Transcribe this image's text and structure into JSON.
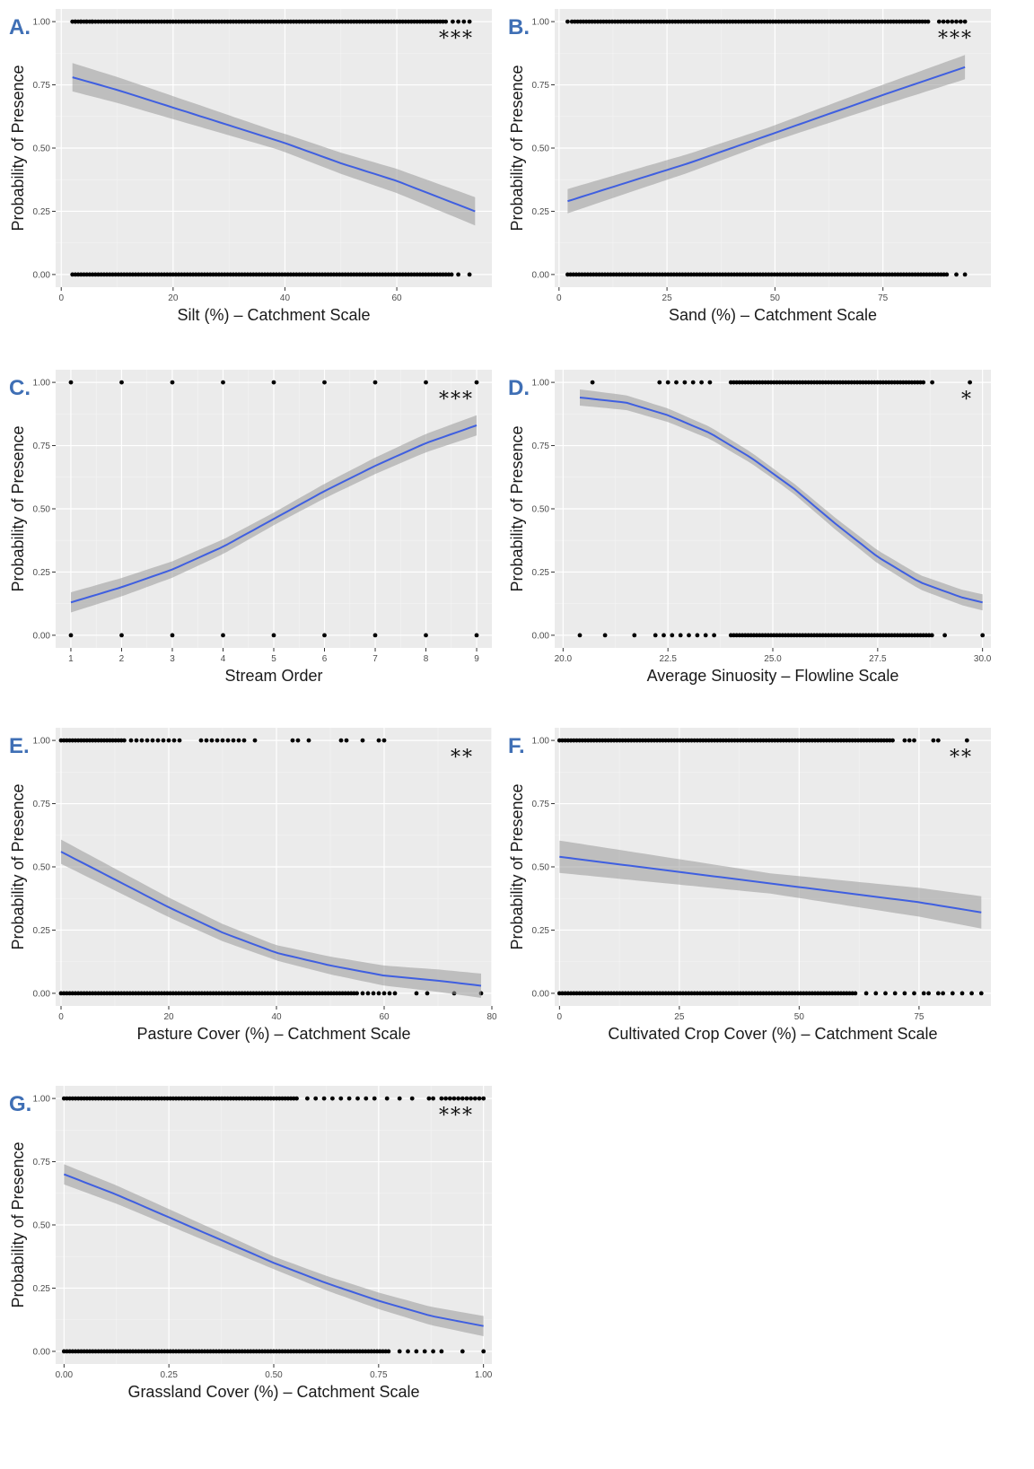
{
  "figure": {
    "y_label": "Probability of Presence",
    "y_ticks": [
      "0.00",
      "0.25",
      "0.50",
      "0.75",
      "1.00"
    ]
  },
  "chart_data": [
    {
      "id": "A",
      "panel_label": "A.",
      "type": "line",
      "xlabel": "Silt (%) – Catchment Scale",
      "ylabel": "Probability of Presence",
      "xlim": [
        -1,
        77
      ],
      "ylim": [
        -0.05,
        1.05
      ],
      "x_ticks": [
        0,
        20,
        40,
        60
      ],
      "x_tick_labels": [
        "0",
        "20",
        "40",
        "60"
      ],
      "significance": "***",
      "fit": {
        "x": [
          2,
          10,
          20,
          30,
          40,
          50,
          60,
          74
        ],
        "y": [
          0.78,
          0.73,
          0.66,
          0.59,
          0.52,
          0.44,
          0.37,
          0.25
        ]
      },
      "ci_halfwidth": 0.035,
      "obs_present": {
        "dense": [
          2,
          69
        ],
        "extra": [
          2.5,
          3.5,
          4.5,
          5.5,
          70,
          71,
          72,
          73
        ]
      },
      "obs_absent": {
        "dense": [
          2,
          70
        ],
        "extra": [
          71,
          73
        ]
      }
    },
    {
      "id": "B",
      "panel_label": "B.",
      "type": "line",
      "xlabel": "Sand (%) – Catchment Scale",
      "ylabel": "Probability of Presence",
      "xlim": [
        -1,
        100
      ],
      "ylim": [
        -0.05,
        1.05
      ],
      "x_ticks": [
        0,
        25,
        50,
        75
      ],
      "x_tick_labels": [
        "0",
        "25",
        "50",
        "75"
      ],
      "significance": "***",
      "fit": {
        "x": [
          2,
          15,
          30,
          45,
          60,
          75,
          94
        ],
        "y": [
          0.29,
          0.36,
          0.44,
          0.53,
          0.62,
          0.71,
          0.82
        ]
      },
      "ci_halfwidth": 0.03,
      "obs_present": {
        "dense": [
          3,
          86
        ],
        "extra": [
          2,
          88,
          89,
          90,
          91,
          92,
          93,
          94
        ]
      },
      "obs_absent": {
        "dense": [
          2,
          90
        ],
        "extra": [
          92,
          94
        ]
      }
    },
    {
      "id": "C",
      "panel_label": "C.",
      "type": "line",
      "xlabel": "Stream Order",
      "ylabel": "Probability of Presence",
      "xlim": [
        0.7,
        9.3
      ],
      "ylim": [
        -0.05,
        1.05
      ],
      "x_ticks": [
        1,
        2,
        3,
        4,
        5,
        6,
        7,
        8,
        9
      ],
      "x_tick_labels": [
        "1",
        "2",
        "3",
        "4",
        "5",
        "6",
        "7",
        "8",
        "9"
      ],
      "significance": "***",
      "fit": {
        "x": [
          1,
          2,
          3,
          4,
          5,
          6,
          7,
          8,
          9
        ],
        "y": [
          0.13,
          0.19,
          0.26,
          0.35,
          0.46,
          0.57,
          0.67,
          0.76,
          0.83
        ]
      },
      "ci_halfwidth": 0.025,
      "obs_present": {
        "dense": [],
        "extra": [
          1,
          2,
          3,
          4,
          5,
          6,
          7,
          8,
          9
        ]
      },
      "obs_absent": {
        "dense": [],
        "extra": [
          1,
          2,
          3,
          4,
          5,
          6,
          7,
          8,
          9
        ]
      }
    },
    {
      "id": "D",
      "panel_label": "D.",
      "type": "line",
      "xlabel": "Average Sinuosity – Flowline Scale",
      "ylabel": "Probability of Presence",
      "xlim": [
        19.8,
        30.2
      ],
      "ylim": [
        -0.05,
        1.05
      ],
      "x_ticks": [
        20,
        22.5,
        25,
        27.5,
        30
      ],
      "x_tick_labels": [
        "20.0",
        "22.5",
        "25.0",
        "27.5",
        "30.0"
      ],
      "significance": "*",
      "fit": {
        "x": [
          20.4,
          21.5,
          22.5,
          23.5,
          24.5,
          25.5,
          26.5,
          27.5,
          28.5,
          29.5,
          30
        ],
        "y": [
          0.94,
          0.92,
          0.87,
          0.8,
          0.7,
          0.58,
          0.44,
          0.31,
          0.21,
          0.15,
          0.13
        ]
      },
      "ci_halfwidth": 0.02,
      "obs_present": {
        "dense": [
          24,
          28.6
        ],
        "extra": [
          20.7,
          22.3,
          22.5,
          22.7,
          22.9,
          23.1,
          23.3,
          23.5,
          28.8,
          29.7
        ]
      },
      "obs_absent": {
        "dense": [
          24,
          28.8
        ],
        "extra": [
          20.4,
          21,
          21.7,
          22.2,
          22.4,
          22.6,
          22.8,
          23,
          23.2,
          23.4,
          23.6,
          29.1,
          30
        ]
      }
    },
    {
      "id": "E",
      "panel_label": "E.",
      "type": "line",
      "xlabel": "Pasture Cover (%) – Catchment Scale",
      "ylabel": "Probability of Presence",
      "xlim": [
        -1,
        80
      ],
      "ylim": [
        -0.05,
        1.05
      ],
      "x_ticks": [
        0,
        20,
        40,
        60,
        80
      ],
      "x_tick_labels": [
        "0",
        "20",
        "40",
        "60",
        "80"
      ],
      "significance": "**",
      "fit": {
        "x": [
          0,
          10,
          20,
          30,
          40,
          50,
          60,
          70,
          78
        ],
        "y": [
          0.56,
          0.45,
          0.34,
          0.24,
          0.16,
          0.11,
          0.07,
          0.05,
          0.03
        ]
      },
      "ci_halfwidth": 0.03,
      "obs_present": {
        "dense": [
          0,
          12
        ],
        "extra": [
          13,
          14,
          15,
          16,
          17,
          18,
          19,
          20,
          21,
          22,
          26,
          27,
          28,
          29,
          30,
          31,
          32,
          33,
          34,
          36,
          43,
          44,
          46,
          52,
          53,
          56,
          59,
          60
        ]
      },
      "obs_absent": {
        "dense": [
          0,
          55
        ],
        "extra": [
          56,
          57,
          58,
          59,
          60,
          61,
          62,
          66,
          68,
          73,
          78
        ]
      }
    },
    {
      "id": "F",
      "panel_label": "F.",
      "type": "line",
      "xlabel": "Cultivated Crop Cover (%) – Catchment Scale",
      "ylabel": "Probability of Presence",
      "xlim": [
        -1,
        90
      ],
      "ylim": [
        -0.05,
        1.05
      ],
      "x_ticks": [
        0,
        25,
        50,
        75
      ],
      "x_tick_labels": [
        "0",
        "25",
        "50",
        "75"
      ],
      "significance": "**",
      "fit": {
        "x": [
          0,
          25,
          50,
          75,
          88
        ],
        "y": [
          0.54,
          0.48,
          0.42,
          0.36,
          0.32
        ]
      },
      "ci_halfwidth": 0.04,
      "obs_present": {
        "dense": [
          0,
          70
        ],
        "extra": [
          72,
          73,
          74,
          78,
          79,
          85
        ]
      },
      "obs_absent": {
        "dense": [
          0,
          62
        ],
        "extra": [
          64,
          66,
          68,
          70,
          72,
          74,
          76,
          77,
          79,
          80,
          82,
          84,
          86,
          88
        ]
      }
    },
    {
      "id": "G",
      "panel_label": "G.",
      "type": "line",
      "xlabel": "Grassland Cover (%) – Catchment Scale",
      "ylabel": "Probability of Presence",
      "xlim": [
        -0.02,
        1.02
      ],
      "ylim": [
        -0.05,
        1.05
      ],
      "x_ticks": [
        0,
        0.25,
        0.5,
        0.75,
        1
      ],
      "x_tick_labels": [
        "0.00",
        "0.25",
        "0.50",
        "0.75",
        "1.00"
      ],
      "significance": "***",
      "fit": {
        "x": [
          0,
          0.125,
          0.25,
          0.375,
          0.5,
          0.625,
          0.75,
          0.875,
          1
        ],
        "y": [
          0.7,
          0.62,
          0.53,
          0.44,
          0.35,
          0.27,
          0.2,
          0.14,
          0.1
        ]
      },
      "ci_halfwidth": 0.025,
      "obs_present": {
        "dense": [
          0,
          0.56
        ],
        "extra": [
          0.58,
          0.6,
          0.62,
          0.64,
          0.66,
          0.68,
          0.7,
          0.72,
          0.74,
          0.77,
          0.8,
          0.83,
          0.87,
          0.88,
          0.9,
          0.91,
          0.92,
          0.93,
          0.94,
          0.95,
          0.96,
          0.97,
          0.98,
          0.99,
          1
        ]
      },
      "obs_absent": {
        "dense": [
          0,
          0.78
        ],
        "extra": [
          0.8,
          0.82,
          0.84,
          0.86,
          0.88,
          0.9,
          0.95,
          1
        ]
      }
    }
  ]
}
